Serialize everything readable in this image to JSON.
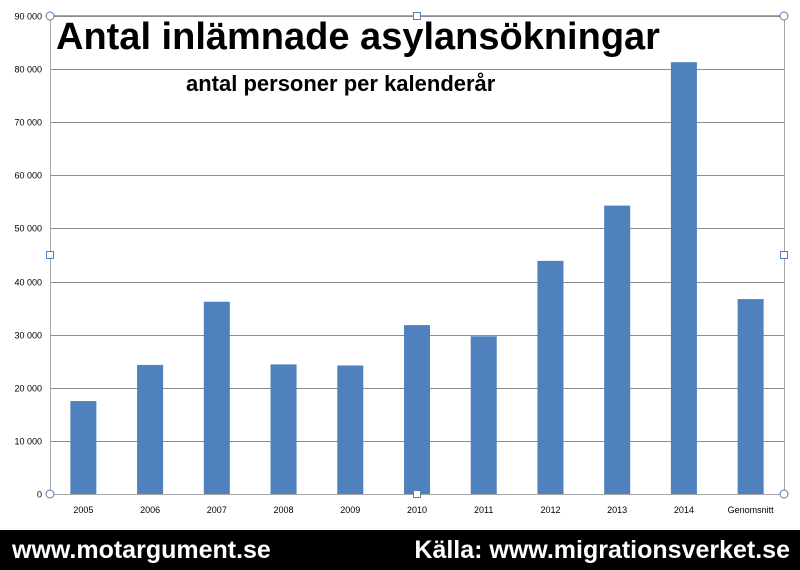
{
  "chart_data": {
    "type": "bar",
    "title": "Antal inlämnade asylansökningar",
    "subtitle": "antal personer per kalenderår",
    "xlabel": "",
    "ylabel": "",
    "categories": [
      "2005",
      "2006",
      "2007",
      "2008",
      "2009",
      "2010",
      "2011",
      "2012",
      "2013",
      "2014",
      "Genomsnitt"
    ],
    "values": [
      17500,
      24300,
      36200,
      24400,
      24200,
      31800,
      29700,
      43900,
      54300,
      81300,
      36700
    ],
    "ylim": [
      0,
      90000
    ],
    "yticks": [
      0,
      10000,
      20000,
      30000,
      40000,
      50000,
      60000,
      70000,
      80000,
      90000
    ],
    "ytick_labels": [
      "0",
      "10 000",
      "20 000",
      "30 000",
      "40 000",
      "50 000",
      "60 000",
      "70 000",
      "80 000",
      "90 000"
    ],
    "grid": true,
    "legend": "none",
    "bar_color": "#4f81bd"
  },
  "footer": {
    "left": "www.motargument.se",
    "right": "Källa: www.migrationsverket.se"
  }
}
